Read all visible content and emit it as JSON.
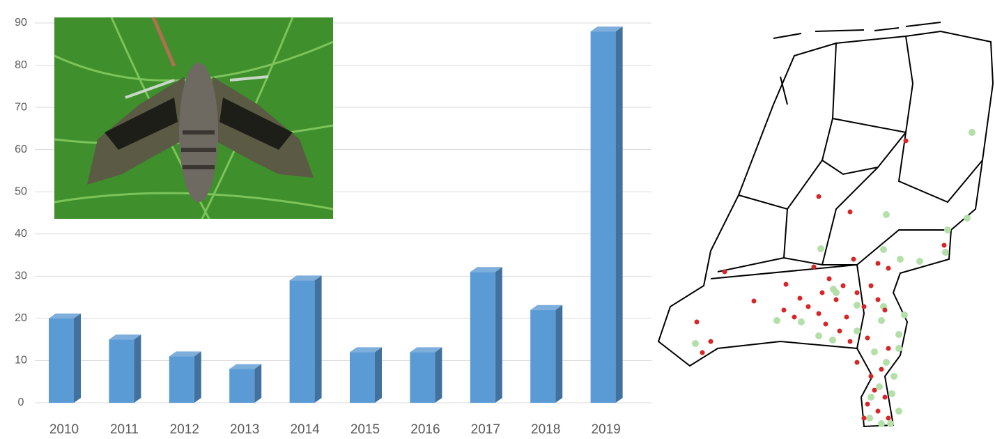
{
  "chart_data": {
    "type": "bar",
    "categories": [
      "2010",
      "2011",
      "2012",
      "2013",
      "2014",
      "2015",
      "2016",
      "2017",
      "2018",
      "2019"
    ],
    "values": [
      20,
      15,
      11,
      8,
      29,
      12,
      12,
      31,
      22,
      88
    ],
    "color": "#5b9bd5",
    "ylim": [
      0,
      90
    ],
    "yticks": [
      0,
      10,
      20,
      30,
      40,
      50,
      60,
      70,
      80,
      90
    ],
    "grid": true
  }
}
